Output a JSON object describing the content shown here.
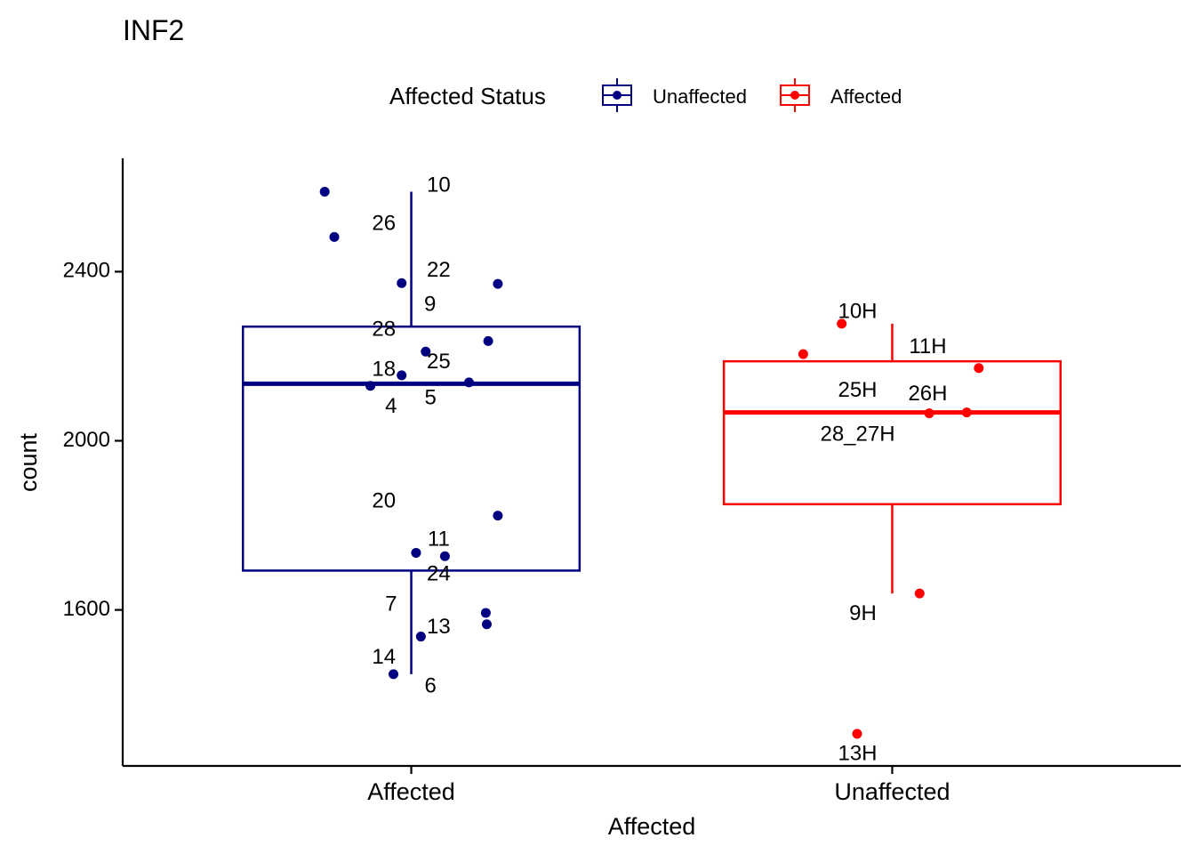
{
  "chart_data": {
    "type": "boxplot",
    "title": "INF2",
    "xlabel": "Affected",
    "ylabel": "count",
    "legend": {
      "title": "Affected Status",
      "position": "top",
      "entries": [
        {
          "label": "Unaffected",
          "color": "#000080"
        },
        {
          "label": "Affected",
          "color": "#ff0000"
        }
      ]
    },
    "ylim": [
      1231,
      2668
    ],
    "yticks": [
      1600,
      2000,
      2400
    ],
    "categories": [
      "Affected",
      "Unaffected"
    ],
    "boxes": [
      {
        "category": "Affected",
        "group": "Unaffected",
        "color": "#000080",
        "whisker_low": 1448,
        "q1": 1693,
        "median": 2135,
        "q3": 2270,
        "whisker_high": 2589
      },
      {
        "category": "Unaffected",
        "group": "Affected",
        "color": "#ff0000",
        "whisker_low": 1639,
        "q1": 1850,
        "median": 2067,
        "q3": 2188,
        "whisker_high": 2277
      }
    ],
    "series": [
      {
        "name": "Unaffected",
        "category": "Affected",
        "color": "#000080",
        "points": [
          {
            "jitter": -0.18,
            "y": 2589
          },
          {
            "jitter": -0.16,
            "y": 2482
          },
          {
            "jitter": -0.02,
            "y": 2373
          },
          {
            "jitter": 0.18,
            "y": 2371
          },
          {
            "jitter": 0.16,
            "y": 2236
          },
          {
            "jitter": 0.03,
            "y": 2211
          },
          {
            "jitter": -0.02,
            "y": 2155
          },
          {
            "jitter": 0.12,
            "y": 2138
          },
          {
            "jitter": -0.085,
            "y": 2130
          },
          {
            "jitter": 0.18,
            "y": 1823
          },
          {
            "jitter": 0.01,
            "y": 1735
          },
          {
            "jitter": 0.07,
            "y": 1727
          },
          {
            "jitter": 0.155,
            "y": 1593
          },
          {
            "jitter": 0.157,
            "y": 1566
          },
          {
            "jitter": 0.02,
            "y": 1537
          },
          {
            "jitter": -0.037,
            "y": 1448
          }
        ]
      },
      {
        "name": "Affected",
        "category": "Unaffected",
        "color": "#ff0000",
        "points": [
          {
            "jitter": -0.105,
            "y": 2277
          },
          {
            "jitter": -0.185,
            "y": 2205
          },
          {
            "jitter": 0.18,
            "y": 2172
          },
          {
            "jitter": 0.155,
            "y": 2067
          },
          {
            "jitter": 0.077,
            "y": 2065
          },
          {
            "jitter": 0.057,
            "y": 1639
          },
          {
            "jitter": -0.073,
            "y": 1307
          }
        ]
      }
    ],
    "labels": [
      {
        "text": "10",
        "category": "Affected",
        "jitter": 0.057,
        "y": 2602
      },
      {
        "text": "26",
        "category": "Affected",
        "jitter": -0.057,
        "y": 2512
      },
      {
        "text": "22",
        "category": "Affected",
        "jitter": 0.057,
        "y": 2402
      },
      {
        "text": "9",
        "category": "Affected",
        "jitter": 0.039,
        "y": 2320
      },
      {
        "text": "28",
        "category": "Affected",
        "jitter": -0.057,
        "y": 2262
      },
      {
        "text": "25",
        "category": "Affected",
        "jitter": 0.057,
        "y": 2185
      },
      {
        "text": "18",
        "category": "Affected",
        "jitter": -0.057,
        "y": 2167
      },
      {
        "text": "5",
        "category": "Affected",
        "jitter": 0.04,
        "y": 2100
      },
      {
        "text": "4",
        "category": "Affected",
        "jitter": -0.042,
        "y": 2080
      },
      {
        "text": "20",
        "category": "Affected",
        "jitter": -0.057,
        "y": 1856
      },
      {
        "text": "11",
        "category": "Affected",
        "jitter": 0.057,
        "y": 1765
      },
      {
        "text": "24",
        "category": "Affected",
        "jitter": 0.057,
        "y": 1683
      },
      {
        "text": "7",
        "category": "Affected",
        "jitter": -0.042,
        "y": 1612
      },
      {
        "text": "13",
        "category": "Affected",
        "jitter": 0.057,
        "y": 1558
      },
      {
        "text": "14",
        "category": "Affected",
        "jitter": -0.057,
        "y": 1486
      },
      {
        "text": "6",
        "category": "Affected",
        "jitter": 0.04,
        "y": 1418
      },
      {
        "text": "10H",
        "category": "Unaffected",
        "jitter": -0.072,
        "y": 2304
      },
      {
        "text": "11H",
        "category": "Unaffected",
        "jitter": 0.074,
        "y": 2221
      },
      {
        "text": "25H",
        "category": "Unaffected",
        "jitter": -0.072,
        "y": 2118
      },
      {
        "text": "26H",
        "category": "Unaffected",
        "jitter": 0.074,
        "y": 2109
      },
      {
        "text": "28_27H",
        "category": "Unaffected",
        "jitter": -0.072,
        "y": 2013
      },
      {
        "text": "9H",
        "category": "Unaffected",
        "jitter": -0.061,
        "y": 1589
      },
      {
        "text": "13H",
        "category": "Unaffected",
        "jitter": -0.072,
        "y": 1258
      }
    ]
  }
}
